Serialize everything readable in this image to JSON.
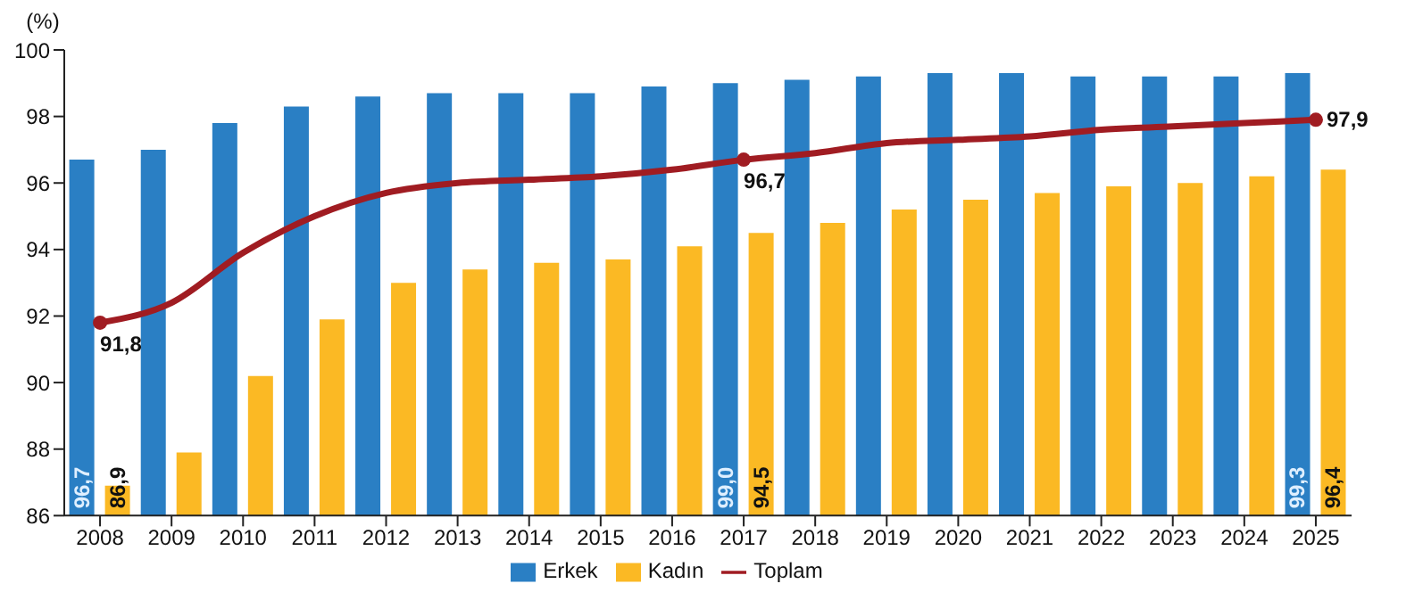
{
  "chart_data": {
    "type": "bar",
    "ylabel": "(%)",
    "categories": [
      "2008",
      "2009",
      "2010",
      "2011",
      "2012",
      "2013",
      "2014",
      "2015",
      "2016",
      "2017",
      "2018",
      "2019",
      "2020",
      "2021",
      "2022",
      "2023",
      "2024",
      "2025"
    ],
    "series": [
      {
        "name": "Erkek",
        "color": "#2a7fc4",
        "values": [
          96.7,
          97.0,
          97.8,
          98.3,
          98.6,
          98.7,
          98.7,
          98.7,
          98.9,
          99.0,
          99.1,
          99.2,
          99.3,
          99.3,
          99.2,
          99.2,
          99.2,
          99.3
        ],
        "value_labels": [
          "96,7",
          null,
          null,
          null,
          null,
          null,
          null,
          null,
          null,
          "99,0",
          null,
          null,
          null,
          null,
          null,
          null,
          null,
          "99,3"
        ]
      },
      {
        "name": "Kadın",
        "color": "#fbb924",
        "values": [
          86.9,
          87.9,
          90.2,
          91.9,
          93.0,
          93.4,
          93.6,
          93.7,
          94.1,
          94.5,
          94.8,
          95.2,
          95.5,
          95.7,
          95.9,
          96.0,
          96.2,
          96.4
        ],
        "value_labels": [
          "86,9",
          null,
          null,
          null,
          null,
          null,
          null,
          null,
          null,
          "94,5",
          null,
          null,
          null,
          null,
          null,
          null,
          null,
          "96,4"
        ]
      },
      {
        "name": "Toplam",
        "type": "line",
        "color": "#a01c22",
        "values": [
          91.8,
          92.4,
          93.9,
          95.0,
          95.7,
          96.0,
          96.1,
          96.2,
          96.4,
          96.7,
          96.9,
          97.2,
          97.3,
          97.4,
          97.6,
          97.7,
          97.8,
          97.9
        ],
        "value_labels": [
          "91,8",
          null,
          null,
          null,
          null,
          null,
          null,
          null,
          null,
          "96,7",
          null,
          null,
          null,
          null,
          null,
          null,
          null,
          "97,9"
        ]
      }
    ],
    "ylim": [
      86,
      100
    ],
    "yticks": [
      86,
      88,
      90,
      92,
      94,
      96,
      98,
      100
    ],
    "grid": false,
    "legend": "bottom"
  }
}
